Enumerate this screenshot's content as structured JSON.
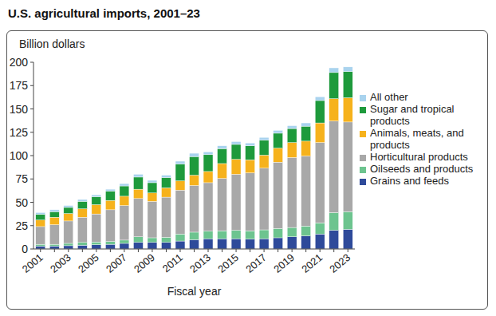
{
  "chart_data": {
    "type": "bar",
    "stacked": true,
    "title": "U.S. agricultural imports, 2001–23",
    "ylabel": "Billion dollars",
    "xlabel": "Fiscal year",
    "categories": [
      "2001",
      null,
      "2003",
      null,
      "2005",
      null,
      "2007",
      null,
      "2009",
      null,
      "2011",
      null,
      "2013",
      null,
      "2015",
      null,
      "2017",
      null,
      "2019",
      null,
      "2021",
      null,
      "2023"
    ],
    "ylim": [
      0,
      200
    ],
    "yticks": [
      0,
      25,
      50,
      75,
      100,
      125,
      150,
      175,
      200
    ],
    "grid": false,
    "legend": "right",
    "series": [
      {
        "name": "Grains and feeds",
        "color": "#2e4a9a",
        "values": [
          3,
          3,
          3.5,
          4,
          4.5,
          5,
          6,
          7,
          7,
          7,
          8.5,
          10,
          11,
          11,
          11,
          10.5,
          11,
          12,
          13,
          14,
          16,
          20,
          21
        ]
      },
      {
        "name": "Oilseeds and products",
        "color": "#6dc48f",
        "values": [
          2,
          2,
          2.5,
          3,
          3,
          3,
          3.5,
          6,
          5,
          5.5,
          7.5,
          8,
          8,
          8.5,
          9,
          9,
          9.5,
          10,
          10,
          10.5,
          12,
          19,
          19
        ]
      },
      {
        "name": "Horticultural products",
        "color": "#a8a8a8",
        "values": [
          19,
          21,
          24,
          27,
          30,
          34,
          37,
          41,
          39,
          43,
          47,
          50,
          52,
          56,
          60,
          62,
          66,
          71,
          75,
          75,
          86,
          98,
          96
        ]
      },
      {
        "name": "Animals, meats, and products",
        "color": "#f6b21c",
        "values": [
          7,
          8,
          8,
          9,
          10,
          10,
          10,
          10,
          9,
          10,
          10,
          11,
          12,
          16,
          16,
          14,
          14,
          15,
          16,
          16,
          21,
          24,
          26
        ]
      },
      {
        "name": "Sugar and tropical products",
        "color": "#1e9a3c",
        "values": [
          6,
          6,
          6.5,
          8,
          8.5,
          10,
          11,
          13,
          11,
          11,
          18,
          20,
          18,
          16,
          16,
          15,
          16,
          16,
          15,
          16,
          24,
          28,
          28
        ]
      },
      {
        "name": "All other",
        "color": "#a9d3ee",
        "values": [
          2,
          2,
          2,
          2,
          2,
          2,
          2.5,
          3,
          2.5,
          2.5,
          3,
          3.5,
          3,
          3,
          3,
          3,
          3,
          3,
          3,
          3.5,
          4,
          5,
          5
        ]
      }
    ]
  }
}
